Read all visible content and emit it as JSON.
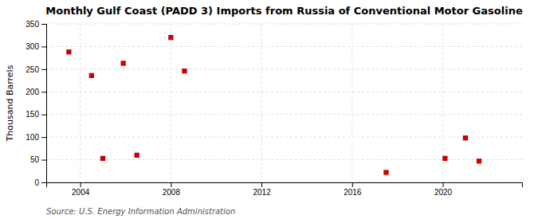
{
  "chart_data": {
    "type": "scatter",
    "title": "Monthly Gulf Coast (PADD 3) Imports from Russia of Conventional Motor Gasoline",
    "ylabel": "Thousand Barrels",
    "annotations": [
      "Source: U.S. Energy Information Administration"
    ],
    "x": [
      2003.5,
      2004.5,
      2005.0,
      2005.9,
      2006.5,
      2008.0,
      2008.6,
      2017.5,
      2020.1,
      2021.0,
      2021.6
    ],
    "values": [
      288,
      236,
      53,
      263,
      60,
      320,
      246,
      22,
      53,
      98,
      47
    ],
    "color": "#CC0000",
    "marker": "square",
    "xlim": [
      2002.5,
      2023.5
    ],
    "ylim": [
      0,
      350
    ],
    "xticks": [
      2004,
      2008,
      2012,
      2016,
      2020
    ],
    "yticks": [
      0,
      50,
      100,
      150,
      200,
      250,
      300,
      350
    ],
    "grid": true
  }
}
